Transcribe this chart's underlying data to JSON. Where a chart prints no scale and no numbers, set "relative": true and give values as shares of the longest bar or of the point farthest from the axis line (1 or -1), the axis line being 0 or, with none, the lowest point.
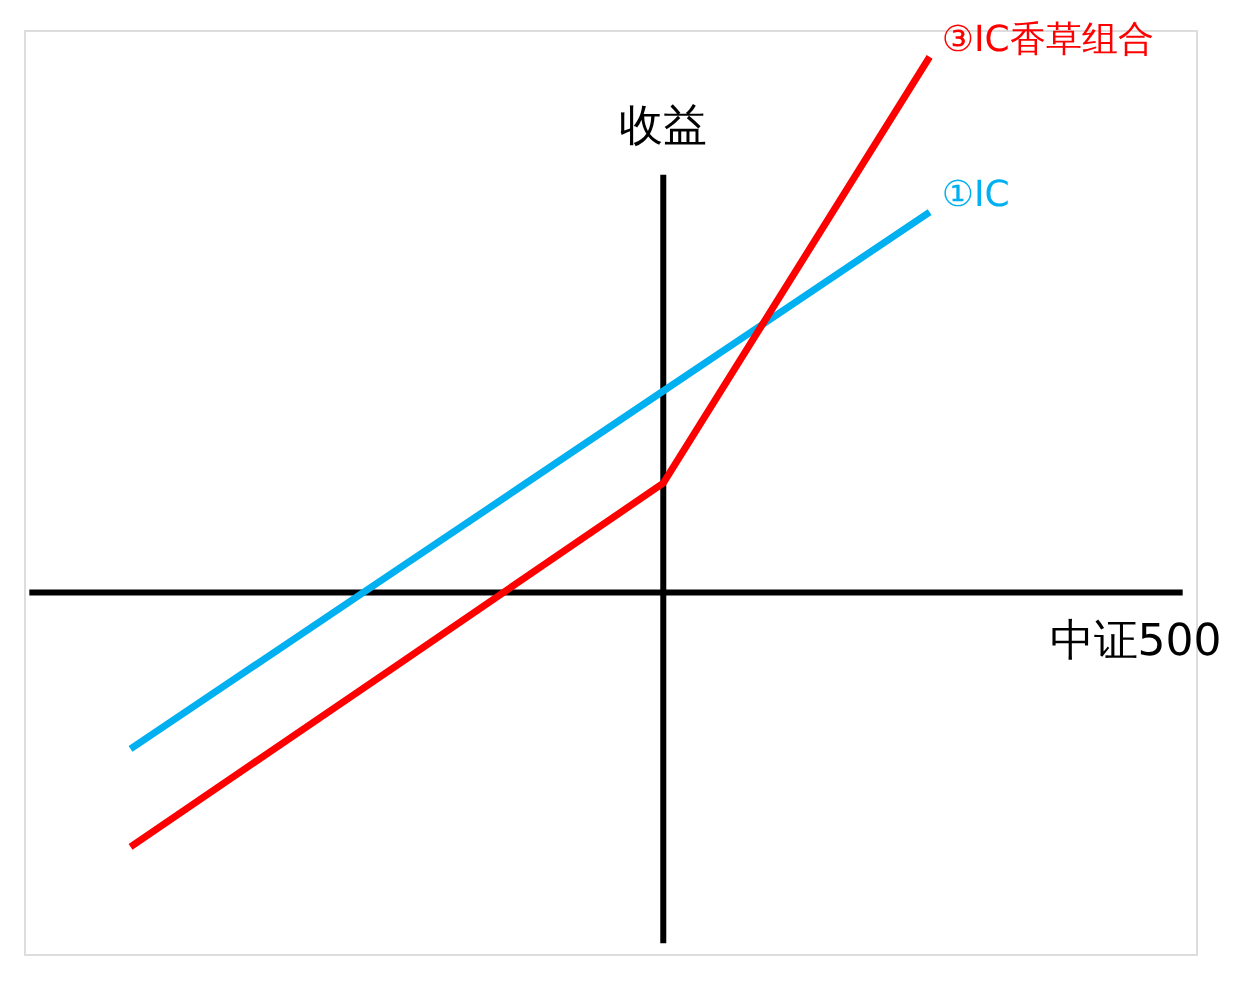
{
  "chart_data": {
    "type": "line",
    "relative": true,
    "xlabel": "中证500",
    "ylabel": "收益",
    "grid": false,
    "categories": [
      null,
      null,
      null,
      null
    ],
    "series": [
      {
        "name": "①IC",
        "color": "#00b0f0",
        "values": [
          -0.292,
          0.042,
          0.376,
          0.71
        ]
      },
      {
        "name": "③IC香草组合",
        "color": "#ff0000",
        "values": [
          -0.475,
          -0.136,
          0.204,
          1
        ]
      }
    ]
  }
}
